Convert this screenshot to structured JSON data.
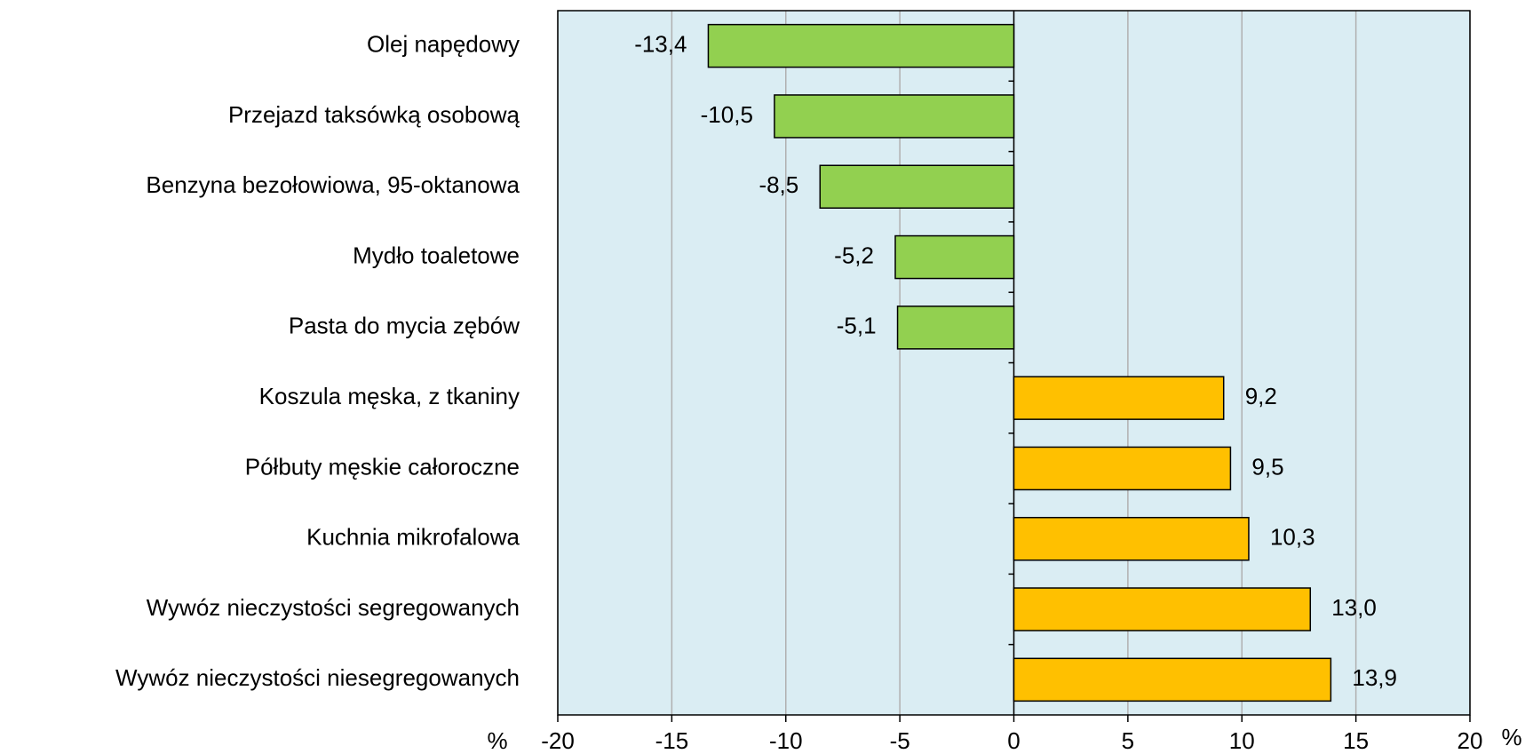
{
  "chart_data": {
    "type": "bar",
    "orientation": "horizontal",
    "categories": [
      "Olej napędowy",
      "Przejazd taksówką osobową",
      "Benzyna bezołowiowa, 95-oktanowa",
      "Mydło toaletowe",
      "Pasta do mycia zębów",
      "Koszula męska, z tkaniny",
      "Półbuty męskie całoroczne",
      "Kuchnia mikrofalowa",
      "Wywóz nieczystości segregowanych",
      "Wywóz nieczystości niesegregowanych"
    ],
    "values": [
      -13.4,
      -10.5,
      -8.5,
      -5.2,
      -5.1,
      9.2,
      9.5,
      10.3,
      13.0,
      13.9
    ],
    "value_labels": [
      "-13,4",
      "-10,5",
      "-8,5",
      "-5,2",
      "-5,1",
      "9,2",
      "9,5",
      "10,3",
      "13,0",
      "13,9"
    ],
    "negative_color": "#92d050",
    "positive_color": "#ffc000",
    "x_unit": "%",
    "xlim": [
      -20,
      20
    ],
    "xticks": [
      -20,
      -15,
      -10,
      -5,
      0,
      5,
      10,
      15,
      20
    ],
    "grid": true
  }
}
